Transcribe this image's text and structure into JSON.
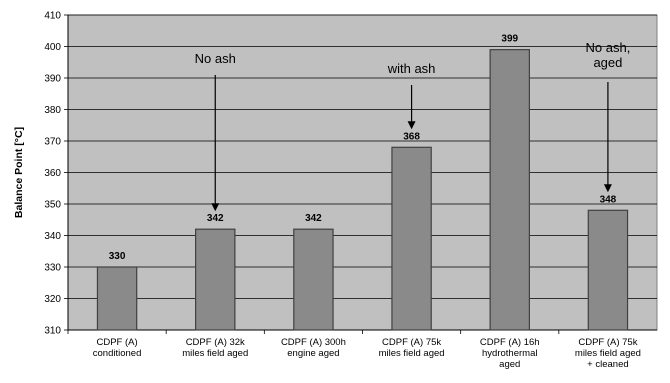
{
  "chart_data": {
    "type": "bar",
    "ylabel": "Balance Point [°C]",
    "xlabel": "",
    "ylim": [
      310,
      410
    ],
    "ytick_step": 10,
    "grid": true,
    "categories": [
      [
        "CDPF (A)",
        "conditioned"
      ],
      [
        "CDPF (A) 32k",
        "miles field aged"
      ],
      [
        "CDPF (A) 300h",
        "engine aged"
      ],
      [
        "CDPF (A) 75k",
        "miles field aged"
      ],
      [
        "CDPF (A) 16h",
        "hydrothermal",
        "aged"
      ],
      [
        "CDPF (A) 75k",
        "miles field aged",
        "+ cleaned"
      ]
    ],
    "values": [
      330,
      342,
      342,
      368,
      399,
      348
    ],
    "value_labels": [
      "330",
      "342",
      "342",
      "368",
      "399",
      "348"
    ],
    "annotations": [
      {
        "lines": [
          "No ash"
        ],
        "category_index": 1
      },
      {
        "lines": [
          "with ash"
        ],
        "category_index": 3
      },
      {
        "lines": [
          "No ash,",
          "aged"
        ],
        "category_index": 5
      }
    ],
    "colors": {
      "plot_bg": "#c0c0c0",
      "bar_fill": "#8a8a8a",
      "bar_stroke": "#404040",
      "grid": "#000000"
    }
  }
}
